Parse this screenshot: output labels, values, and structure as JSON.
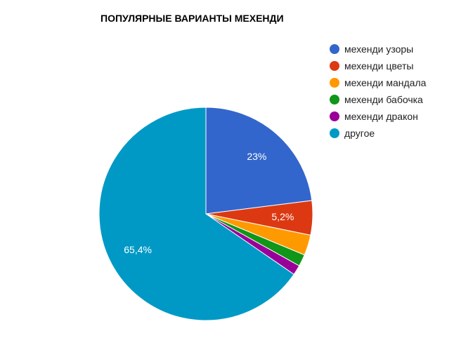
{
  "chart_data": {
    "type": "pie",
    "title": "ПОПУЛЯРНЫЕ ВАРИАНТЫ МЕХЕНДИ",
    "categories": [
      "мехенди узоры",
      "мехенди цветы",
      "мехенди мандала",
      "мехенди бабочка",
      "мехенди дракон",
      "другое"
    ],
    "values": [
      23,
      5.2,
      3.1,
      1.8,
      1.5,
      65.4
    ],
    "labels": [
      "23%",
      "5,2%",
      "",
      "",
      "",
      "65,4%"
    ],
    "colors": [
      "#3366cc",
      "#dc3912",
      "#ff9900",
      "#109618",
      "#990099",
      "#0099c6"
    ],
    "legend_position": "right",
    "start_angle_deg": 0,
    "direction": "clockwise"
  }
}
